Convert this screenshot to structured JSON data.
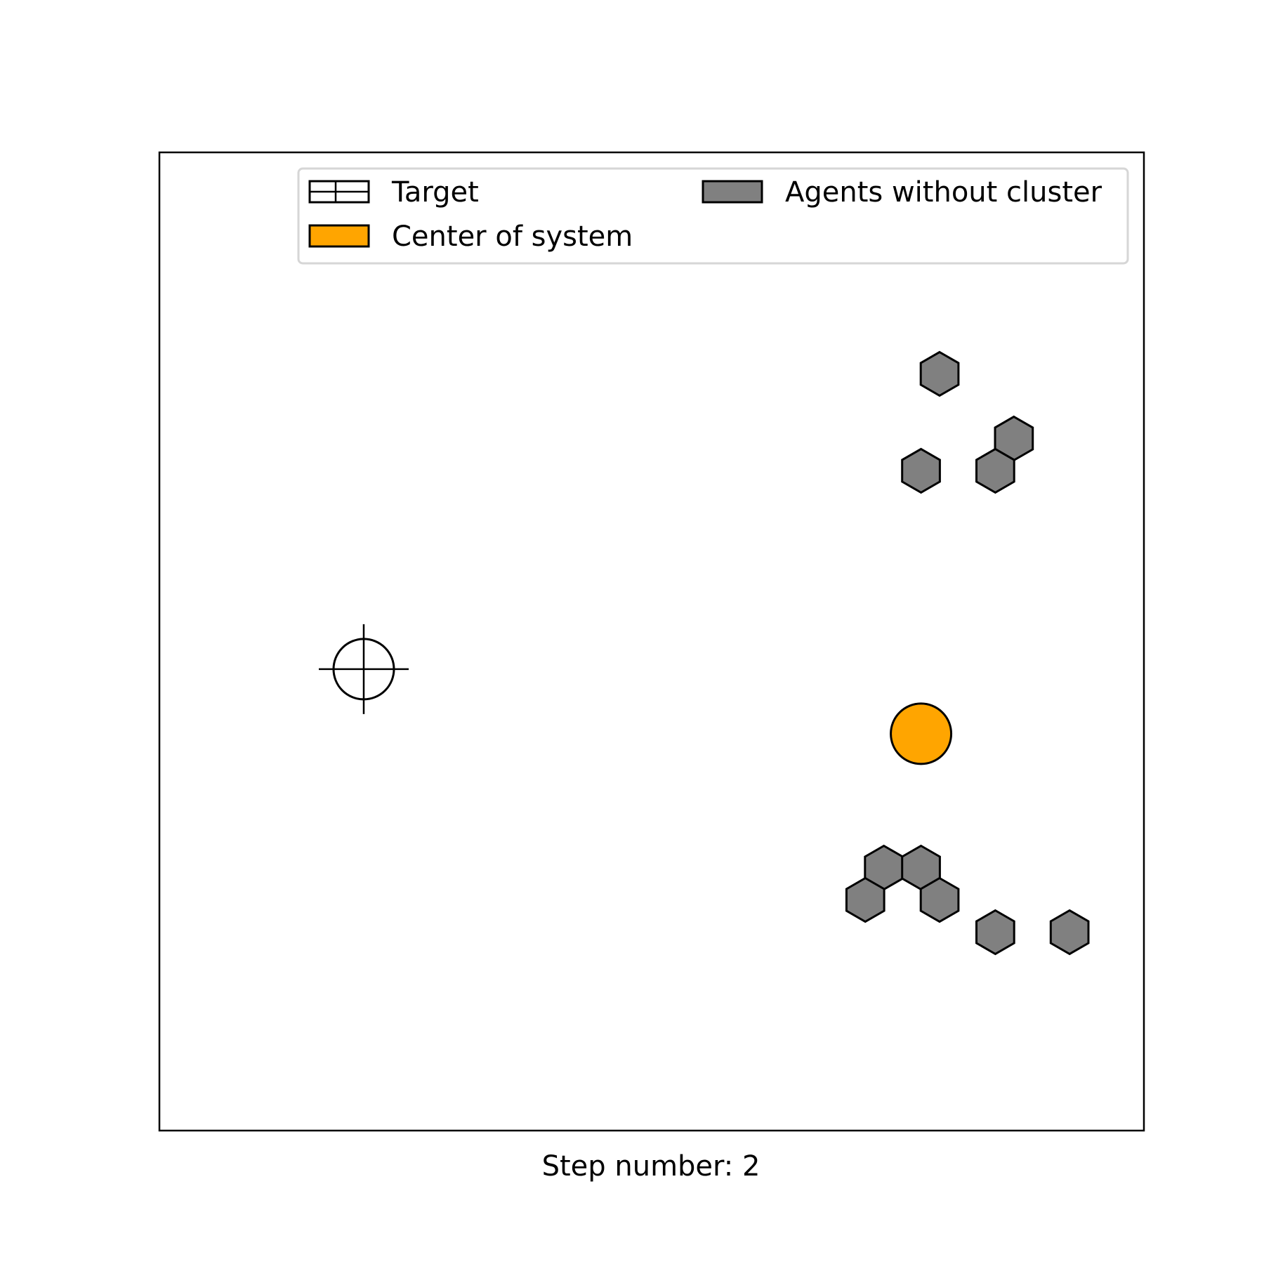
{
  "chart_data": {
    "type": "scatter",
    "xlabel": "Step number: 2",
    "xlim": [
      0,
      10.6
    ],
    "ylim": [
      0,
      10.6
    ],
    "grid": false,
    "ticks": false,
    "legend": {
      "placement": "top-right",
      "columns": 2,
      "entries": [
        {
          "label": "Target",
          "swatch": "hatched"
        },
        {
          "label": "Agents without cluster",
          "swatch": "gray"
        },
        {
          "label": "Center of system",
          "swatch": "orange"
        }
      ]
    },
    "colors": {
      "agent_fill": "#808080",
      "center_fill": "#FFA500",
      "edge": "#000000",
      "legend_frame": "#d6d6d6"
    },
    "target": {
      "x": 2.2,
      "y": 5.0
    },
    "center": {
      "x": 8.2,
      "y": 4.3
    },
    "agents": [
      {
        "x": 8.4,
        "y": 8.2
      },
      {
        "x": 9.2,
        "y": 7.5
      },
      {
        "x": 8.2,
        "y": 7.15
      },
      {
        "x": 9.0,
        "y": 7.15
      },
      {
        "x": 7.8,
        "y": 2.85
      },
      {
        "x": 8.2,
        "y": 2.85
      },
      {
        "x": 7.6,
        "y": 2.5
      },
      {
        "x": 8.4,
        "y": 2.5
      },
      {
        "x": 9.0,
        "y": 2.15
      },
      {
        "x": 9.8,
        "y": 2.15
      }
    ]
  }
}
